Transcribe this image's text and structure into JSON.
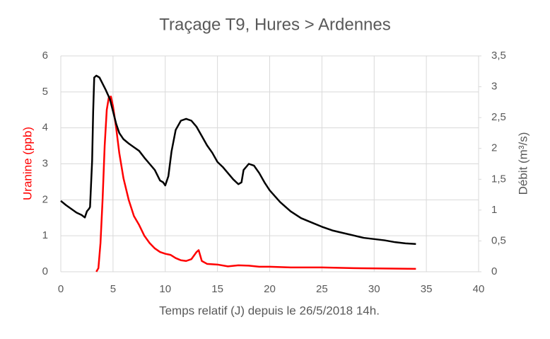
{
  "chart_data": {
    "type": "line",
    "title": "Traçage T9, Hures > Ardennes",
    "x_label": "Temps relatif (J) depuis le 26/5/2018 14h.",
    "y_label": "Uranine (ppb)",
    "y2_label": "Débit (m³/s)",
    "y_label_color": "#ff0000",
    "xlim": [
      0,
      40
    ],
    "xticks": [
      0,
      5,
      10,
      15,
      20,
      25,
      30,
      35,
      40
    ],
    "ylim": [
      0,
      6
    ],
    "yticks": [
      0,
      1,
      2,
      3,
      4,
      5,
      6
    ],
    "y2lim": [
      0,
      3.5
    ],
    "y2ticks": [
      0,
      {
        "value": 0.5,
        "label": "0,5"
      },
      1,
      {
        "value": 1.5,
        "label": "1,5"
      },
      2,
      {
        "value": 2.5,
        "label": "2,5"
      },
      3,
      {
        "value": 3.5,
        "label": "3,5"
      }
    ],
    "grid": true,
    "series": [
      {
        "color": "#ff0000",
        "axis": "y",
        "x": [
          3.4,
          3.6,
          3.8,
          4.0,
          4.2,
          4.4,
          4.6,
          4.8,
          5.0,
          5.3,
          5.6,
          6,
          6.5,
          7,
          7.5,
          8,
          8.5,
          9,
          9.5,
          10,
          10.5,
          11,
          11.5,
          12,
          12.5,
          13,
          13.2,
          13.5,
          14,
          15,
          16,
          17,
          18,
          19,
          20,
          22,
          25,
          28,
          31,
          34
        ],
        "values": [
          0,
          0.1,
          0.8,
          2.0,
          3.5,
          4.5,
          4.85,
          4.87,
          4.6,
          4.0,
          3.3,
          2.6,
          2.0,
          1.55,
          1.3,
          1.0,
          0.8,
          0.65,
          0.55,
          0.5,
          0.47,
          0.38,
          0.32,
          0.3,
          0.35,
          0.55,
          0.6,
          0.3,
          0.22,
          0.2,
          0.15,
          0.18,
          0.17,
          0.14,
          0.14,
          0.12,
          0.12,
          0.1,
          0.09,
          0.08
        ]
      },
      {
        "color": "#000000",
        "axis": "y2",
        "x": [
          0,
          0.5,
          1,
          1.5,
          2,
          2.3,
          2.5,
          2.7,
          2.8,
          3.0,
          3.1,
          3.2,
          3.4,
          3.7,
          4,
          4.3,
          4.7,
          5,
          5.3,
          5.6,
          6,
          6.5,
          7,
          7.5,
          8,
          8.5,
          9,
          9.5,
          9.8,
          10,
          10.3,
          10.6,
          11,
          11.5,
          12,
          12.5,
          13,
          13.5,
          14,
          14.5,
          15,
          15.5,
          16,
          16.5,
          17,
          17.3,
          17.5,
          18,
          18.5,
          19,
          19.5,
          20,
          21,
          22,
          23,
          24,
          25,
          26,
          27,
          28,
          29,
          30,
          31,
          32,
          33,
          34
        ],
        "values": [
          1.15,
          1.08,
          1.02,
          0.96,
          0.92,
          0.88,
          0.98,
          1.02,
          1.05,
          1.8,
          2.6,
          3.15,
          3.18,
          3.15,
          3.05,
          2.95,
          2.8,
          2.6,
          2.4,
          2.25,
          2.15,
          2.08,
          2.02,
          1.96,
          1.85,
          1.75,
          1.65,
          1.48,
          1.45,
          1.4,
          1.55,
          1.95,
          2.3,
          2.45,
          2.48,
          2.45,
          2.35,
          2.2,
          2.05,
          1.93,
          1.78,
          1.7,
          1.6,
          1.5,
          1.42,
          1.45,
          1.65,
          1.75,
          1.72,
          1.6,
          1.45,
          1.32,
          1.13,
          0.98,
          0.87,
          0.8,
          0.73,
          0.67,
          0.63,
          0.59,
          0.55,
          0.53,
          0.51,
          0.48,
          0.46,
          0.45
        ]
      }
    ]
  }
}
